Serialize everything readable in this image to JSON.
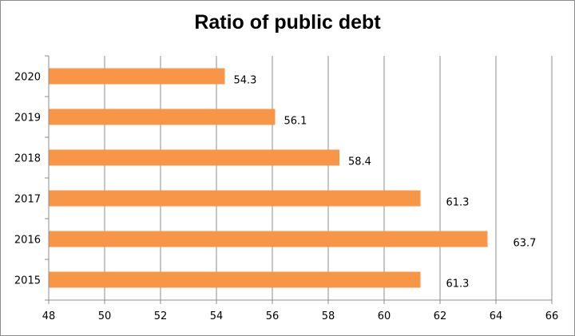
{
  "chart_data": {
    "type": "bar",
    "orientation": "horizontal",
    "title": "Ratio of public debt",
    "categories": [
      "2015",
      "2016",
      "2017",
      "2018",
      "2019",
      "2020"
    ],
    "values": [
      61.3,
      63.7,
      61.3,
      58.4,
      56.1,
      54.3
    ],
    "data_labels": [
      "61.3",
      "63.7",
      "61.3",
      "58.4",
      "56.1",
      "54.3"
    ],
    "xlim": [
      48,
      66
    ],
    "xticks": [
      "48",
      "50",
      "52",
      "54",
      "56",
      "58",
      "60",
      "62",
      "64",
      "66"
    ],
    "xlabel": "",
    "ylabel": "",
    "grid": true,
    "legend": "none",
    "bar_color": "#f79646"
  }
}
